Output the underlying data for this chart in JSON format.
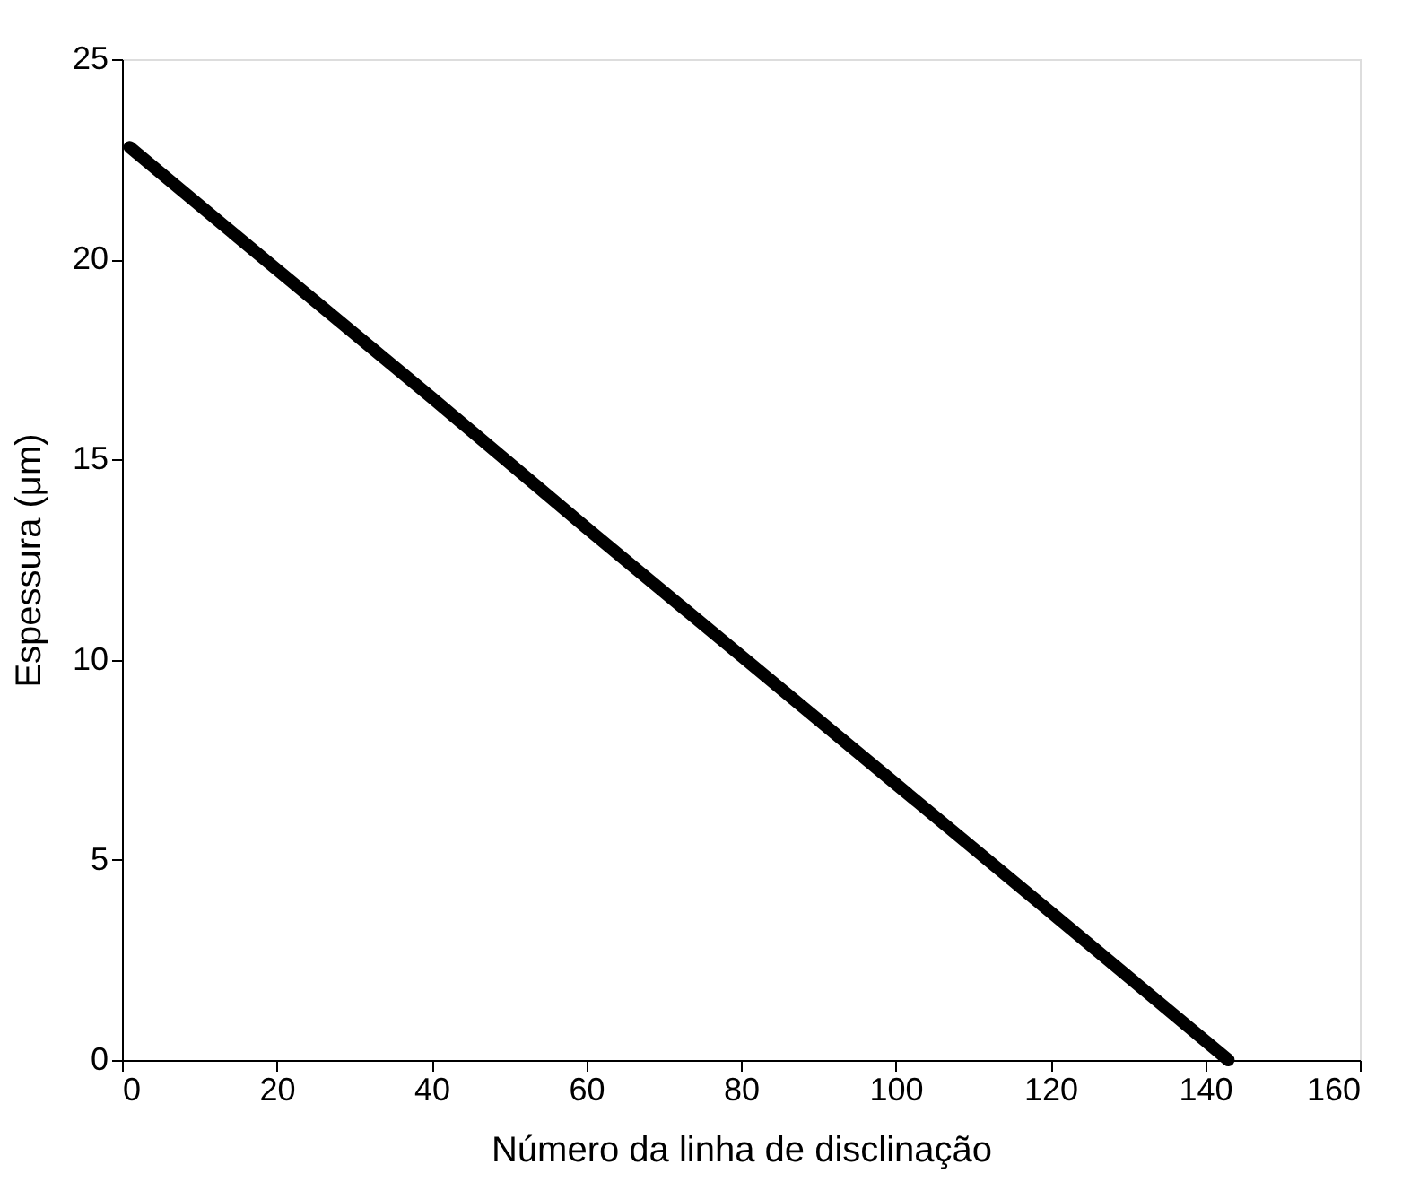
{
  "chart_data": {
    "type": "line",
    "xlabel": "Número da linha de disclinação",
    "ylabel": "Espessura (μm)",
    "series": [
      {
        "color": "#000000",
        "x": [
          1,
          20,
          40,
          60,
          80,
          100,
          120,
          143
        ],
        "values": [
          22.8,
          19.75,
          16.55,
          13.3,
          10.1,
          6.9,
          3.7,
          0
        ]
      }
    ],
    "xlim": [
      0,
      160
    ],
    "xticks": [
      0,
      20,
      40,
      60,
      80,
      100,
      120,
      140,
      160
    ],
    "ylim": [
      0,
      25
    ],
    "yticks": [
      0,
      5,
      10,
      15,
      20,
      25
    ],
    "grid": false,
    "line_style": "solid"
  }
}
